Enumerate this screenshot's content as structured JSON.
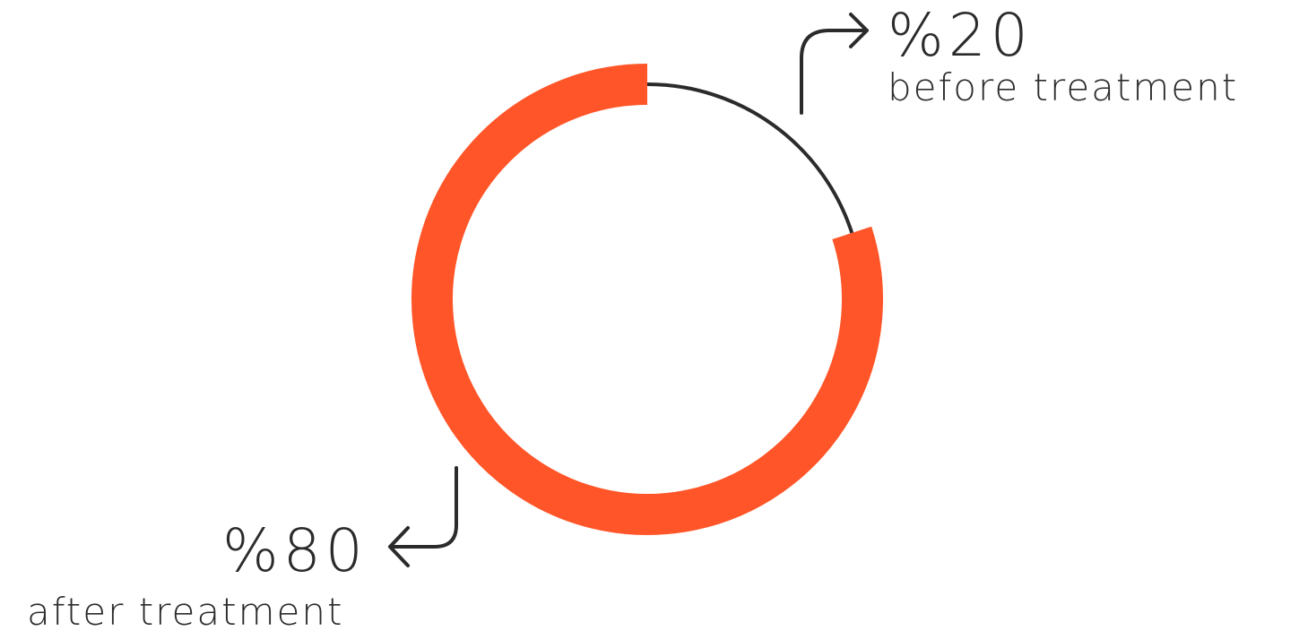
{
  "colors": {
    "accent": "#FF5528",
    "dark": "#2b2b2b",
    "background": "#ffffff"
  },
  "chart_data": {
    "type": "pie",
    "style": "donut-ring",
    "slices": [
      {
        "label": "before treatment",
        "value_label": "%20",
        "value": 20,
        "color": "#2b2b2b"
      },
      {
        "label": "after treatment",
        "value_label": "%80",
        "value": 80,
        "color": "#FF5528"
      }
    ],
    "title": "",
    "legend": "none"
  }
}
